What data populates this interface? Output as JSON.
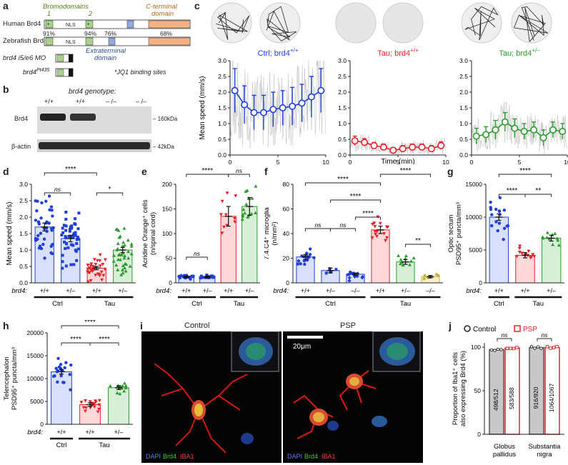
{
  "panel_letters": [
    "a",
    "b",
    "c",
    "d",
    "e",
    "f",
    "g",
    "h",
    "i",
    "j"
  ],
  "panel_a": {
    "bromodomains_label": "Bromodomains",
    "bd1": "1",
    "bd2": "2",
    "cterm_label": "C-terminal",
    "cterm_label2": "domain",
    "human": "Human Brd4",
    "zebrafish": "Zebrafish Brd4",
    "nls": "NLS",
    "pct": [
      "91%",
      "94%",
      "76%",
      "68%"
    ],
    "extra1": "Extraterminal",
    "extra2": "domain",
    "mo": "brd4 i5/e6 MO",
    "pt": "brd4",
    "pt_sup": "Pt435",
    "jq1": "*JQ1 binding sites"
  },
  "panel_b": {
    "title": "brd4 genotype:",
    "lanes": [
      "+/+",
      "+/+",
      "– /–",
      "– /–"
    ],
    "brd4": "Brd4",
    "actin": "β-actin",
    "kda1": "– 160kDa",
    "kda2": "– 42kDa"
  },
  "panel_c": {
    "titles": [
      "Ctrl; brd4",
      "Tau; brd4",
      "Tau; brd4"
    ],
    "sups": [
      "+/+",
      "+/+",
      "+/–"
    ],
    "colors": [
      "#1f3fd8",
      "#e8202a",
      "#2e9a2e"
    ],
    "ylabel": "Mean speed (mm/s)",
    "xlabel": "Time (min)",
    "yticks": [
      "0.0",
      "0.5",
      "1.0",
      "1.5",
      "2.0",
      "2.5",
      "3.0"
    ],
    "xticks": [
      "0",
      "5",
      "10"
    ]
  },
  "chart_data": [
    {
      "panel": "c",
      "type": "line",
      "x": [
        0.5,
        1.5,
        2.5,
        3.5,
        4.5,
        5.5,
        6.5,
        7.5,
        8.5,
        9.5
      ],
      "series": [
        {
          "name": "Ctrl; brd4+/+",
          "values": [
            2.05,
            1.6,
            1.35,
            1.35,
            1.45,
            1.5,
            1.55,
            1.65,
            1.85,
            2.05
          ],
          "err": [
            0.7,
            0.6,
            0.55,
            0.55,
            0.55,
            0.55,
            0.6,
            0.6,
            0.65,
            0.7
          ]
        },
        {
          "name": "Tau; brd4+/+",
          "values": [
            0.45,
            0.4,
            0.3,
            0.25,
            0.15,
            0.2,
            0.25,
            0.25,
            0.2,
            0.3
          ],
          "err": [
            0.15,
            0.12,
            0.1,
            0.1,
            0.08,
            0.1,
            0.1,
            0.1,
            0.1,
            0.12
          ]
        },
        {
          "name": "Tau; brd4+/–",
          "values": [
            0.6,
            0.65,
            0.8,
            1.05,
            0.85,
            0.75,
            0.8,
            0.55,
            0.8,
            0.75
          ],
          "err": [
            0.25,
            0.25,
            0.3,
            0.3,
            0.3,
            0.25,
            0.25,
            0.25,
            0.25,
            0.25
          ]
        }
      ],
      "ylim": [
        0,
        3
      ],
      "xlim": [
        0,
        10
      ]
    },
    {
      "panel": "d",
      "type": "scatter",
      "ylabel": "Mean speed (mm/s)",
      "yticks": [
        "0.0",
        "0.5",
        "1.0",
        "1.5",
        "2.0",
        "2.5",
        "3.0"
      ],
      "ylim": [
        0,
        3
      ],
      "categories": [
        "+/+",
        "+/–",
        "+/+",
        "+/–"
      ],
      "means": [
        1.7,
        1.35,
        0.45,
        1.0
      ],
      "sem": [
        0.12,
        0.1,
        0.05,
        0.08
      ],
      "groups": [
        "Ctrl",
        "Tau"
      ],
      "sig": [
        "****",
        "ns",
        "*"
      ]
    },
    {
      "panel": "e",
      "type": "scatter",
      "ylabel": "Acridine Orange⁺ cells",
      "ylabel2": "(n/spinal cord)",
      "yticks": [
        "0",
        "50",
        "100",
        "150",
        "200"
      ],
      "ylim": [
        0,
        200
      ],
      "categories": [
        "+/+",
        "+/–",
        "+/+",
        "+/–"
      ],
      "means": [
        12,
        12,
        135,
        155
      ],
      "sem": [
        2,
        2,
        20,
        18
      ],
      "groups": [
        "Ctrl",
        "Tau"
      ],
      "sig": [
        "****",
        "ns",
        "ns"
      ]
    },
    {
      "panel": "f",
      "type": "scatter",
      "ylabel": "7.4.C4⁺ microglia",
      "ylabel2": "(n/mm²)",
      "yticks": [
        "0",
        "20",
        "40",
        "60",
        "80"
      ],
      "ylim": [
        0,
        80
      ],
      "categories": [
        "+/+",
        "+/–",
        "–/–",
        "+/+",
        "+/–",
        "–/–"
      ],
      "means": [
        21,
        10,
        7,
        43,
        17,
        5
      ],
      "sem": [
        2,
        2,
        1,
        3,
        2,
        1
      ],
      "groups": [
        "Ctrl",
        "Tau"
      ],
      "sig": [
        "****",
        "****",
        "****",
        "ns",
        "ns",
        "****",
        "**"
      ]
    },
    {
      "panel": "g",
      "type": "scatter",
      "ylabel": "Optic tectum",
      "ylabel2": "PSD95⁺ puncta/mm³",
      "yticks": [
        "0",
        "5000",
        "10000",
        "15000"
      ],
      "ylim": [
        0,
        15000
      ],
      "categories": [
        "+/+",
        "+/+",
        "+/–"
      ],
      "means": [
        10000,
        4200,
        6800
      ],
      "sem": [
        500,
        400,
        450
      ],
      "groups": [
        "Ctrl",
        "Tau"
      ],
      "sig": [
        "****",
        "****",
        "**"
      ]
    },
    {
      "panel": "h",
      "type": "scatter",
      "ylabel": "Telencephalon",
      "ylabel2": "PSD95⁺ puncta/mm³",
      "yticks": [
        "0",
        "5000",
        "10000",
        "15000",
        "20000"
      ],
      "ylim": [
        0,
        20000
      ],
      "categories": [
        "+/+",
        "+/+",
        "+/–"
      ],
      "means": [
        11500,
        4300,
        8000
      ],
      "sem": [
        500,
        400,
        400
      ],
      "groups": [
        "Ctrl",
        "Tau"
      ],
      "sig": [
        "****",
        "****",
        "****"
      ]
    },
    {
      "panel": "j",
      "type": "bar",
      "ylabel": "Proportion of Iba1⁺ cells",
      "ylabel2": "also expressing Brd4 (%)",
      "yticks": [
        "0",
        "50",
        "100"
      ],
      "ylim": [
        0,
        105
      ],
      "categories": [
        "Globus pallidus",
        "Substantia nigra"
      ],
      "category_lines": [
        [
          "Globus",
          "pallidus"
        ],
        [
          "Substantia",
          "nigra"
        ]
      ],
      "series": [
        {
          "name": "Control",
          "values": [
            97.3,
            99.6
          ],
          "labels": [
            "498/512",
            "916/920"
          ]
        },
        {
          "name": "PSP",
          "values": [
            99.1,
            99.7
          ],
          "labels": [
            "583/588",
            "1064/1067"
          ]
        }
      ],
      "sig": [
        "ns",
        "ns"
      ]
    }
  ],
  "genotype_label": "brd4:",
  "panel_i": {
    "control": "Control",
    "psp": "PSP",
    "scale": "20μm",
    "dapi": "DAPI",
    "brd4": "Brd4",
    "iba1": "IBA1"
  },
  "colors": {
    "blue": "#1f3fd8",
    "red": "#e8202a",
    "green": "#2e9a2e",
    "olive": "#c8b432"
  }
}
